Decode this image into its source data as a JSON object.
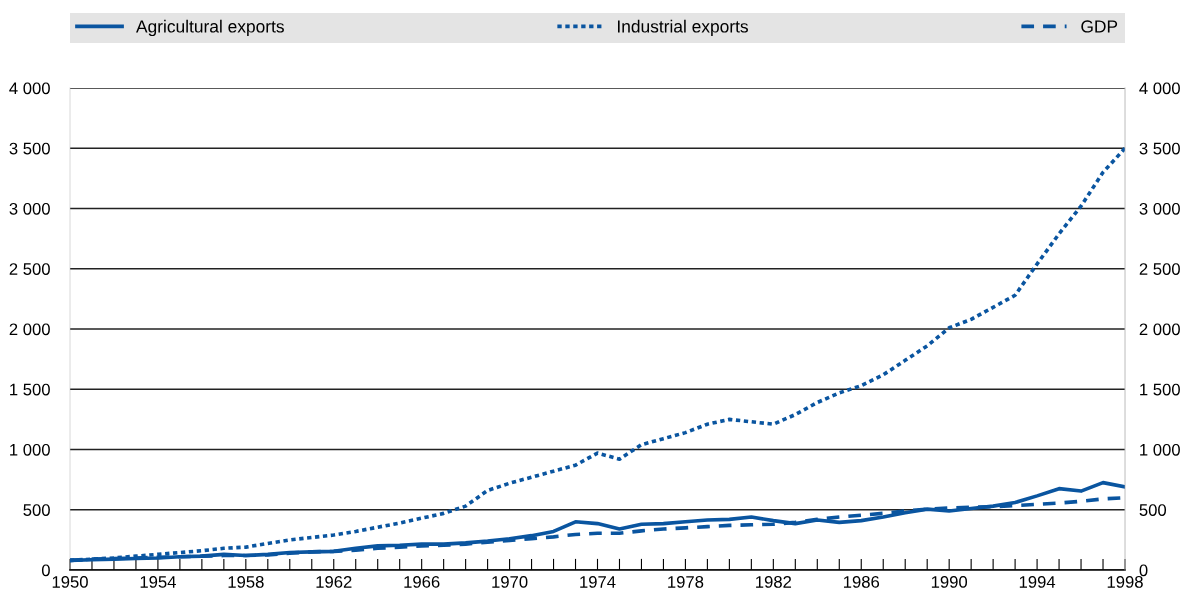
{
  "chart_data": {
    "type": "line",
    "x": [
      1950,
      1951,
      1952,
      1953,
      1954,
      1955,
      1956,
      1957,
      1958,
      1959,
      1960,
      1961,
      1962,
      1963,
      1964,
      1965,
      1966,
      1967,
      1968,
      1969,
      1970,
      1971,
      1972,
      1973,
      1974,
      1975,
      1976,
      1977,
      1978,
      1979,
      1980,
      1981,
      1982,
      1983,
      1984,
      1985,
      1986,
      1987,
      1988,
      1989,
      1990,
      1991,
      1992,
      1993,
      1994,
      1995,
      1996,
      1997,
      1998
    ],
    "series": [
      {
        "name": "Agricultural exports",
        "color": "#0a55a0",
        "line_style": "solid",
        "values": [
          80,
          85,
          90,
          95,
          100,
          110,
          115,
          130,
          120,
          130,
          145,
          150,
          155,
          180,
          200,
          205,
          215,
          215,
          225,
          240,
          260,
          285,
          320,
          400,
          385,
          340,
          380,
          385,
          400,
          415,
          420,
          440,
          410,
          385,
          415,
          395,
          410,
          440,
          475,
          505,
          490,
          510,
          530,
          560,
          615,
          675,
          655,
          725,
          690
        ]
      },
      {
        "name": "Industrial exports",
        "color": "#0a55a0",
        "line_style": "dotted",
        "values": [
          80,
          90,
          100,
          115,
          130,
          145,
          160,
          180,
          190,
          220,
          250,
          270,
          290,
          320,
          355,
          390,
          430,
          470,
          530,
          660,
          720,
          770,
          820,
          870,
          970,
          920,
          1040,
          1090,
          1140,
          1210,
          1250,
          1230,
          1210,
          1290,
          1390,
          1470,
          1530,
          1620,
          1740,
          1860,
          2010,
          2080,
          2180,
          2280,
          2540,
          2790,
          3020,
          3300,
          3500
        ]
      },
      {
        "name": "GDP",
        "color": "#0a55a0",
        "line_style": "dashed",
        "values": [
          80,
          90,
          95,
          100,
          105,
          110,
          115,
          120,
          120,
          125,
          140,
          150,
          155,
          165,
          180,
          190,
          200,
          205,
          215,
          230,
          245,
          260,
          275,
          295,
          305,
          305,
          325,
          340,
          350,
          360,
          370,
          375,
          380,
          395,
          420,
          440,
          455,
          470,
          490,
          505,
          515,
          520,
          525,
          535,
          545,
          555,
          570,
          590,
          600
        ]
      }
    ],
    "xlim": [
      1950,
      1998
    ],
    "xticks": [
      1950,
      {
        "value": 1951,
        "label": null
      },
      {
        "value": 1952,
        "label": null
      },
      {
        "value": 1953,
        "label": null
      },
      1954,
      {
        "value": 1955,
        "label": null
      },
      {
        "value": 1956,
        "label": null
      },
      {
        "value": 1957,
        "label": null
      },
      1958,
      {
        "value": 1959,
        "label": null
      },
      {
        "value": 1960,
        "label": null
      },
      {
        "value": 1961,
        "label": null
      },
      1962,
      {
        "value": 1963,
        "label": null
      },
      {
        "value": 1964,
        "label": null
      },
      {
        "value": 1965,
        "label": null
      },
      1966,
      {
        "value": 1967,
        "label": null
      },
      {
        "value": 1968,
        "label": null
      },
      {
        "value": 1969,
        "label": null
      },
      1970,
      {
        "value": 1971,
        "label": null
      },
      {
        "value": 1972,
        "label": null
      },
      {
        "value": 1973,
        "label": null
      },
      1974,
      {
        "value": 1975,
        "label": null
      },
      {
        "value": 1976,
        "label": null
      },
      {
        "value": 1977,
        "label": null
      },
      1978,
      {
        "value": 1979,
        "label": null
      },
      {
        "value": 1980,
        "label": null
      },
      {
        "value": 1981,
        "label": null
      },
      1982,
      {
        "value": 1983,
        "label": null
      },
      {
        "value": 1984,
        "label": null
      },
      {
        "value": 1985,
        "label": null
      },
      1986,
      {
        "value": 1987,
        "label": null
      },
      {
        "value": 1988,
        "label": null
      },
      {
        "value": 1989,
        "label": null
      },
      1990,
      {
        "value": 1991,
        "label": null
      },
      {
        "value": 1992,
        "label": null
      },
      {
        "value": 1993,
        "label": null
      },
      1994,
      {
        "value": 1995,
        "label": null
      },
      {
        "value": 1996,
        "label": null
      },
      {
        "value": 1997,
        "label": null
      },
      1998
    ],
    "ylim": [
      0,
      4000
    ],
    "yticks": [
      0,
      500,
      {
        "value": 1000,
        "label": "1 000"
      },
      {
        "value": 1500,
        "label": "1 500"
      },
      {
        "value": 2000,
        "label": "2 000"
      },
      {
        "value": 2500,
        "label": "2 500"
      },
      {
        "value": 3000,
        "label": "3 000"
      },
      {
        "value": 3500,
        "label": "3 500"
      },
      {
        "value": 4000,
        "label": "4 000"
      }
    ],
    "y2lim": [
      0,
      4000
    ],
    "y2ticks": [
      0,
      500,
      {
        "value": 1000,
        "label": "1 000"
      },
      {
        "value": 1500,
        "label": "1 500"
      },
      {
        "value": 2000,
        "label": "2 000"
      },
      {
        "value": 2500,
        "label": "2 500"
      },
      {
        "value": 3000,
        "label": "3 000"
      },
      {
        "value": 3500,
        "label": "3 500"
      },
      {
        "value": 4000,
        "label": "4 000"
      }
    ],
    "grid": "y",
    "legend": "top"
  }
}
